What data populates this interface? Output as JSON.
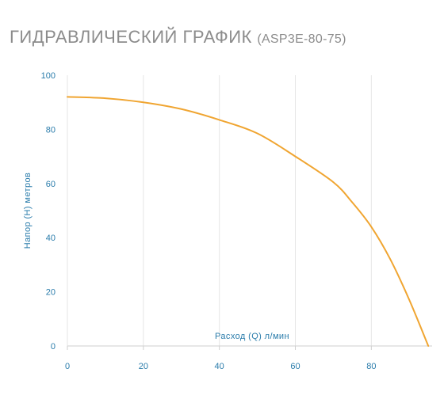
{
  "header": {
    "title": "ГИДРАВЛИЧЕСКИЙ ГРАФИК",
    "subtitle": "(ASP3E-80-75)"
  },
  "colors": {
    "title": "#8c8c8c",
    "axis_text": "#2a7cab",
    "grid": "#e6e6e6",
    "curve": "#f0a531"
  },
  "chart_data": {
    "type": "line",
    "title": "ГИДРАВЛИЧЕСКИЙ ГРАФИК (ASP3E-80-75)",
    "xlabel": "Расход (Q) л/мин",
    "ylabel": "Напор (Н) метров",
    "xlim": [
      0,
      96
    ],
    "ylim": [
      0,
      100
    ],
    "x_ticks": [
      0,
      20,
      40,
      60,
      80
    ],
    "y_ticks": [
      0,
      20,
      40,
      60,
      80,
      100
    ],
    "x_tick_labels": [
      "0",
      "20",
      "40",
      "60",
      "80"
    ],
    "y_tick_labels": [
      "0",
      "20",
      "40",
      "60",
      "80",
      "100"
    ],
    "grid": "vertical",
    "series": [
      {
        "x": [
          0,
          10,
          20,
          30,
          40,
          50,
          60,
          70,
          75,
          80,
          85,
          90,
          95
        ],
        "y": [
          92,
          91.5,
          90,
          87.5,
          83.5,
          78.5,
          70,
          60.5,
          53,
          44,
          32,
          17,
          0
        ]
      }
    ]
  }
}
